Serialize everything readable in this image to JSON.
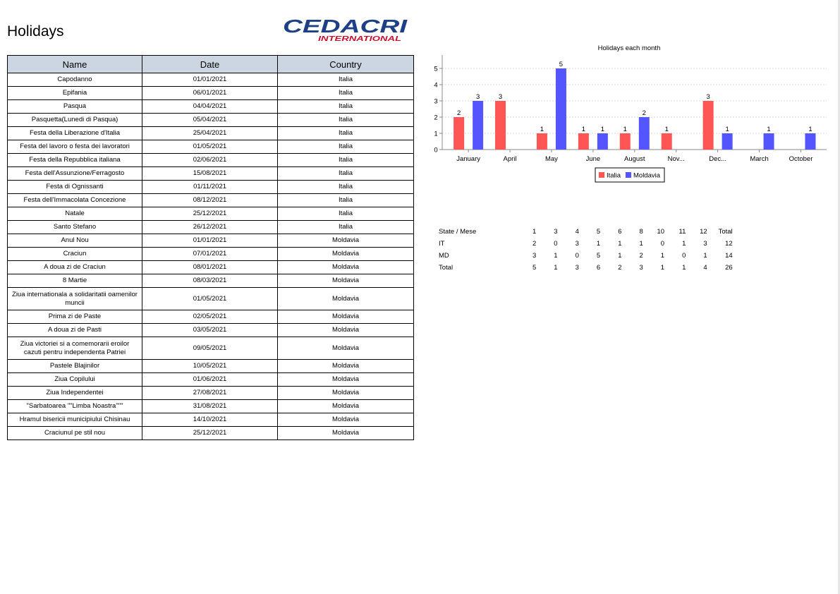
{
  "page": {
    "title": "Holidays"
  },
  "logo": {
    "line1": "CEDACRI",
    "line2": "INTERNATIONAL",
    "color1": "#1d3f85",
    "color2": "#c8102e"
  },
  "table": {
    "headers": [
      "Name",
      "Date",
      "Country"
    ],
    "rows": [
      [
        "Capodanno",
        "01/01/2021",
        "Italia"
      ],
      [
        "Epifania",
        "06/01/2021",
        "Italia"
      ],
      [
        "Pasqua",
        "04/04/2021",
        "Italia"
      ],
      [
        "Pasquetta(Lunedi di Pasqua)",
        "05/04/2021",
        "Italia"
      ],
      [
        "Festa della Liberazione d'Italia",
        "25/04/2021",
        "Italia"
      ],
      [
        "Festa del lavoro o festa dei lavoratori",
        "01/05/2021",
        "Italia"
      ],
      [
        "Festa della Repubblica italiana",
        "02/06/2021",
        "Italia"
      ],
      [
        "Festa dell'Assunzione/Ferragosto",
        "15/08/2021",
        "Italia"
      ],
      [
        "Festa di Ognissanti",
        "01/11/2021",
        "Italia"
      ],
      [
        "Festa dell'Immacolata Concezione",
        "08/12/2021",
        "Italia"
      ],
      [
        "Natale",
        "25/12/2021",
        "Italia"
      ],
      [
        "Santo Stefano",
        "26/12/2021",
        "Italia"
      ],
      [
        "Anul Nou",
        "01/01/2021",
        "Moldavia"
      ],
      [
        "Craciun",
        "07/01/2021",
        "Moldavia"
      ],
      [
        "A doua zi de Craciun",
        "08/01/2021",
        "Moldavia"
      ],
      [
        "8 Martie",
        "08/03/2021",
        "Moldavia"
      ],
      [
        "Ziua internationala a solidaritatii oamenilor muncii",
        "01/05/2021",
        "Moldavia"
      ],
      [
        "Prima zi de Paste",
        "02/05/2021",
        "Moldavia"
      ],
      [
        "A doua zi de Pasti",
        "03/05/2021",
        "Moldavia"
      ],
      [
        "Ziua victoriei si a comemorarii eroilor cazuti pentru independenta Patriei",
        "09/05/2021",
        "Moldavia"
      ],
      [
        "Pastele Blajinilor",
        "10/05/2021",
        "Moldavia"
      ],
      [
        "Ziua Copilului",
        "01/06/2021",
        "Moldavia"
      ],
      [
        "Ziua Independentei",
        "27/08/2021",
        "Moldavia"
      ],
      [
        "\"Sarbatoarea \"\"Limba Noastra\"\"\"",
        "31/08/2021",
        "Moldavia"
      ],
      [
        "Hramul bisericii municipiului Chisinau",
        "14/10/2021",
        "Moldavia"
      ],
      [
        "Craciunul pe stil nou",
        "25/12/2021",
        "Moldavia"
      ]
    ]
  },
  "chart_data": {
    "type": "bar",
    "title": "Holidays each month",
    "categories": [
      "January",
      "April",
      "May",
      "June",
      "August",
      "Nov...",
      "Dec...",
      "March",
      "October"
    ],
    "series": [
      {
        "name": "Italia",
        "color": "#ff5555",
        "values": [
          2,
          3,
          1,
          1,
          1,
          1,
          3,
          0,
          0
        ]
      },
      {
        "name": "Moldavia",
        "color": "#5555ff",
        "values": [
          3,
          0,
          5,
          1,
          2,
          0,
          1,
          1,
          1
        ]
      }
    ],
    "ylim": [
      0,
      5
    ],
    "yticks": [
      0,
      1,
      2,
      3,
      4,
      5
    ],
    "grid": true,
    "legend": "bottom"
  },
  "summary": {
    "header_label": "State / Mese",
    "columns": [
      "1",
      "3",
      "4",
      "5",
      "6",
      "8",
      "10",
      "11",
      "12"
    ],
    "total_label": "Total",
    "rows": [
      {
        "label": "IT",
        "values": [
          "2",
          "0",
          "3",
          "1",
          "1",
          "1",
          "0",
          "1",
          "3"
        ],
        "total": "12"
      },
      {
        "label": "MD",
        "values": [
          "3",
          "1",
          "0",
          "5",
          "1",
          "2",
          "1",
          "0",
          "1"
        ],
        "total": "14"
      },
      {
        "label": "Total",
        "values": [
          "5",
          "1",
          "3",
          "6",
          "2",
          "3",
          "1",
          "1",
          "4"
        ],
        "total": "26"
      }
    ]
  }
}
